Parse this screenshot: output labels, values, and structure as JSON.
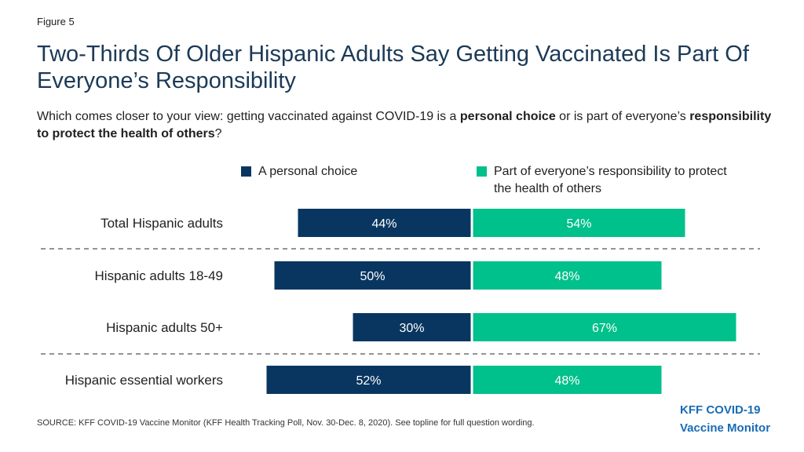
{
  "figure_label": "Figure 5",
  "title": "Two-Thirds Of Older Hispanic Adults Say Getting Vaccinated Is Part Of Everyone’s Responsibility",
  "subtitle": {
    "part1": "Which comes closer to your view:  getting vaccinated against COVID-19 is a ",
    "bold1": "personal choice",
    "part2": " or is part of everyone’s ",
    "bold2": "responsibility to protect the health of others",
    "part3": "?"
  },
  "colors": {
    "personal": "#083660",
    "responsibility": "#00c08b"
  },
  "chart_data": {
    "type": "bar",
    "orientation": "diverging-horizontal",
    "categories": [
      "Total Hispanic adults",
      "Hispanic adults 18-49",
      "Hispanic adults 50+",
      "Hispanic essential workers"
    ],
    "series": [
      {
        "name": "A personal choice",
        "values": [
          44,
          50,
          30,
          52
        ],
        "labels": [
          "44%",
          "50%",
          "30%",
          "52%"
        ]
      },
      {
        "name": "Part of everyone’s responsibility to protect the health of others",
        "values": [
          54,
          48,
          67,
          48
        ],
        "labels": [
          "54%",
          "48%",
          "67%",
          "48%"
        ]
      }
    ],
    "legend_position": "top",
    "grid": false
  },
  "source": "SOURCE: KFF COVID-19 Vaccine Monitor (KFF Health Tracking Poll, Nov. 30-Dec. 8, 2020). See topline for full question wording.",
  "logo": {
    "line1": "KFF COVID-19",
    "line2": "Vaccine Monitor"
  }
}
